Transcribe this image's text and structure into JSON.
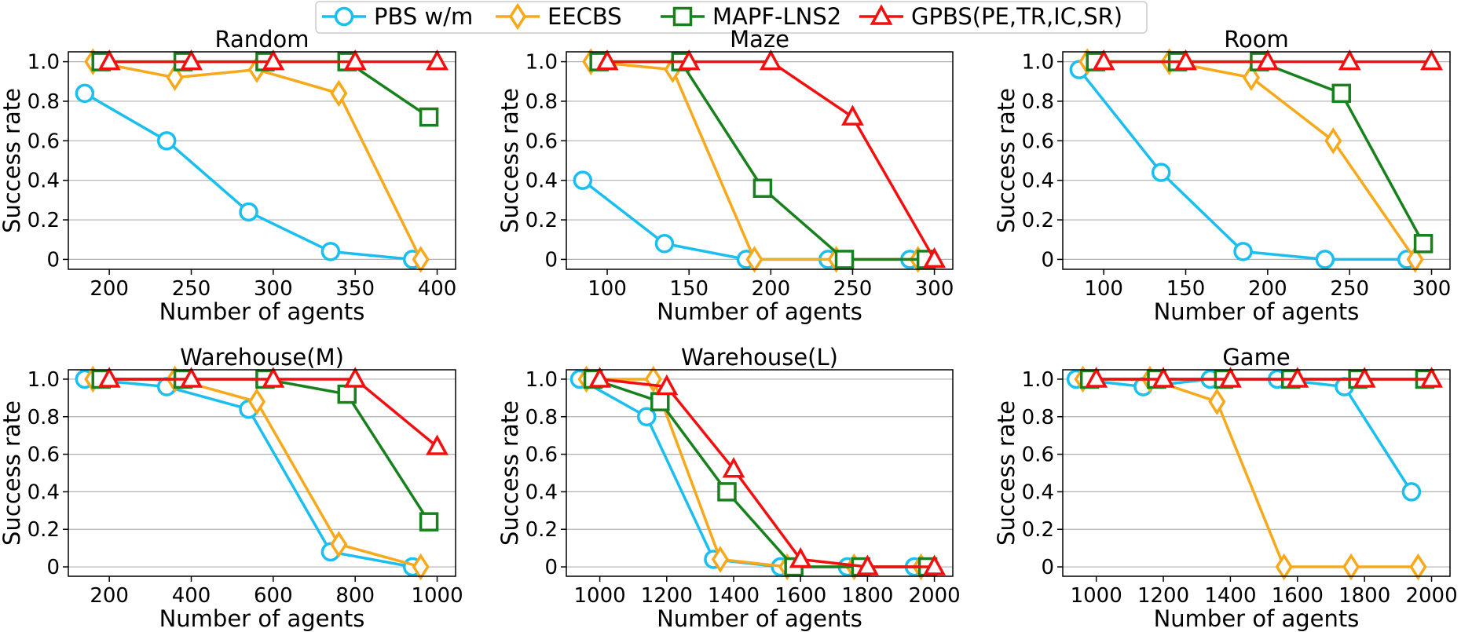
{
  "legend": {
    "placement": "top-center",
    "entries": [
      {
        "label": "PBS w/m",
        "color": "#1ABFEF",
        "marker": "circle"
      },
      {
        "label": "EECBS",
        "color": "#F7A81B",
        "marker": "diamond"
      },
      {
        "label": "MAPF-LNS2",
        "color": "#18811D",
        "marker": "square"
      },
      {
        "label": "GPBS(PE,TR,IC,SR)",
        "color": "#F20F0F",
        "marker": "triangle"
      }
    ]
  },
  "chart_data": [
    {
      "type": "line",
      "title": "Random",
      "xlabel": "Number of agents",
      "ylabel": "Success rate",
      "xlim": [
        175,
        400
      ],
      "ylim": [
        -0.05,
        1.05
      ],
      "xticks": [
        200,
        250,
        300,
        350,
        400
      ],
      "xtick_labels": [
        "200",
        "250",
        "300",
        "350",
        "400"
      ],
      "yticks": [
        0,
        0.2,
        0.4,
        0.6,
        0.8,
        1.0
      ],
      "ytick_labels": [
        "0",
        "0.2",
        "0.4",
        "0.6",
        "0.8",
        "1.0"
      ],
      "grid": "horizontal",
      "series": [
        {
          "name": "PBS w/m",
          "x": [
            185,
            235,
            285,
            335,
            385
          ],
          "y": [
            0.84,
            0.6,
            0.24,
            0.04,
            0.0
          ]
        },
        {
          "name": "EECBS",
          "x": [
            190,
            240,
            290,
            340,
            390
          ],
          "y": [
            1.0,
            0.92,
            0.96,
            0.84,
            0.0
          ]
        },
        {
          "name": "MAPF-LNS2",
          "x": [
            195,
            245,
            295,
            345,
            395
          ],
          "y": [
            1.0,
            1.0,
            1.0,
            1.0,
            0.72
          ]
        },
        {
          "name": "GPBS(PE,TR,IC,SR)",
          "x": [
            200,
            250,
            300,
            350,
            400
          ],
          "y": [
            1.0,
            1.0,
            1.0,
            1.0,
            1.0
          ]
        }
      ]
    },
    {
      "type": "line",
      "title": "Maze",
      "xlabel": "Number of agents",
      "ylabel": "Success rate",
      "xlim": [
        75,
        300
      ],
      "ylim": [
        -0.05,
        1.05
      ],
      "xticks": [
        100,
        150,
        200,
        250,
        300
      ],
      "xtick_labels": [
        "100",
        "150",
        "200",
        "250",
        "300"
      ],
      "yticks": [
        0,
        0.2,
        0.4,
        0.6,
        0.8,
        1.0
      ],
      "ytick_labels": [
        "0",
        "0.2",
        "0.4",
        "0.6",
        "0.8",
        "1.0"
      ],
      "grid": "horizontal",
      "series": [
        {
          "name": "PBS w/m",
          "x": [
            85,
            135,
            185,
            235,
            285
          ],
          "y": [
            0.4,
            0.08,
            0.0,
            0.0,
            0.0
          ]
        },
        {
          "name": "EECBS",
          "x": [
            90,
            140,
            190,
            240,
            290
          ],
          "y": [
            1.0,
            0.96,
            0.0,
            0.0,
            0.0
          ]
        },
        {
          "name": "MAPF-LNS2",
          "x": [
            95,
            145,
            195,
            245,
            295
          ],
          "y": [
            1.0,
            1.0,
            0.36,
            0.0,
            0.0
          ]
        },
        {
          "name": "GPBS(PE,TR,IC,SR)",
          "x": [
            100,
            150,
            200,
            250,
            300
          ],
          "y": [
            1.0,
            1.0,
            1.0,
            0.72,
            0.0
          ]
        }
      ]
    },
    {
      "type": "line",
      "title": "Room",
      "xlabel": "Number of agents",
      "ylabel": "Success rate",
      "xlim": [
        75,
        300
      ],
      "ylim": [
        -0.05,
        1.05
      ],
      "xticks": [
        100,
        150,
        200,
        250,
        300
      ],
      "xtick_labels": [
        "100",
        "150",
        "200",
        "250",
        "300"
      ],
      "yticks": [
        0,
        0.2,
        0.4,
        0.6,
        0.8,
        1.0
      ],
      "ytick_labels": [
        "0",
        "0.2",
        "0.4",
        "0.6",
        "0.8",
        "1.0"
      ],
      "grid": "horizontal",
      "series": [
        {
          "name": "PBS w/m",
          "x": [
            85,
            135,
            185,
            235,
            285
          ],
          "y": [
            0.96,
            0.44,
            0.04,
            0.0,
            0.0
          ]
        },
        {
          "name": "EECBS",
          "x": [
            90,
            140,
            190,
            240,
            290
          ],
          "y": [
            1.0,
            1.0,
            0.92,
            0.6,
            0.0
          ]
        },
        {
          "name": "MAPF-LNS2",
          "x": [
            95,
            145,
            195,
            245,
            295
          ],
          "y": [
            1.0,
            1.0,
            1.0,
            0.84,
            0.08
          ]
        },
        {
          "name": "GPBS(PE,TR,IC,SR)",
          "x": [
            100,
            150,
            200,
            250,
            300
          ],
          "y": [
            1.0,
            1.0,
            1.0,
            1.0,
            1.0
          ]
        }
      ]
    },
    {
      "type": "line",
      "title": "Warehouse(M)",
      "xlabel": "Number of agents",
      "ylabel": "Success rate",
      "xlim": [
        100,
        1000
      ],
      "ylim": [
        -0.05,
        1.05
      ],
      "xticks": [
        200,
        400,
        600,
        800,
        1000
      ],
      "xtick_labels": [
        "200",
        "400",
        "600",
        "800",
        "1000"
      ],
      "yticks": [
        0,
        0.2,
        0.4,
        0.6,
        0.8,
        1.0
      ],
      "ytick_labels": [
        "0",
        "0.2",
        "0.4",
        "0.6",
        "0.8",
        "1.0"
      ],
      "grid": "horizontal",
      "series": [
        {
          "name": "PBS w/m",
          "x": [
            140,
            340,
            540,
            740,
            940
          ],
          "y": [
            1.0,
            0.96,
            0.84,
            0.08,
            0.0
          ]
        },
        {
          "name": "EECBS",
          "x": [
            160,
            360,
            560,
            760,
            960
          ],
          "y": [
            1.0,
            1.0,
            0.88,
            0.12,
            0.0
          ]
        },
        {
          "name": "MAPF-LNS2",
          "x": [
            180,
            380,
            580,
            780,
            980
          ],
          "y": [
            1.0,
            1.0,
            1.0,
            0.92,
            0.24
          ]
        },
        {
          "name": "GPBS(PE,TR,IC,SR)",
          "x": [
            200,
            400,
            600,
            800,
            1000
          ],
          "y": [
            1.0,
            1.0,
            1.0,
            1.0,
            0.64
          ]
        }
      ]
    },
    {
      "type": "line",
      "title": "Warehouse(L)",
      "xlabel": "Number of agents",
      "ylabel": "Success rate",
      "xlim": [
        900,
        2000
      ],
      "ylim": [
        -0.05,
        1.05
      ],
      "xticks": [
        1000,
        1200,
        1400,
        1600,
        1800,
        2000
      ],
      "xtick_labels": [
        "1000",
        "1200",
        "1400",
        "1600",
        "1800",
        "2000"
      ],
      "yticks": [
        0,
        0.2,
        0.4,
        0.6,
        0.8,
        1.0
      ],
      "ytick_labels": [
        "0",
        "0.2",
        "0.4",
        "0.6",
        "0.8",
        "1.0"
      ],
      "grid": "horizontal",
      "series": [
        {
          "name": "PBS w/m",
          "x": [
            940,
            1140,
            1340,
            1540,
            1740,
            1940
          ],
          "y": [
            1.0,
            0.8,
            0.04,
            0.0,
            0.0,
            0.0
          ]
        },
        {
          "name": "EECBS",
          "x": [
            960,
            1160,
            1360,
            1560,
            1760,
            1960
          ],
          "y": [
            1.0,
            1.0,
            0.04,
            0.0,
            0.0,
            0.0
          ]
        },
        {
          "name": "MAPF-LNS2",
          "x": [
            980,
            1180,
            1380,
            1580,
            1780,
            1980
          ],
          "y": [
            1.0,
            0.88,
            0.4,
            0.0,
            0.0,
            0.0
          ]
        },
        {
          "name": "GPBS(PE,TR,IC,SR)",
          "x": [
            1000,
            1200,
            1400,
            1600,
            1800,
            2000
          ],
          "y": [
            1.0,
            0.96,
            0.52,
            0.04,
            0.0,
            0.0
          ]
        }
      ]
    },
    {
      "type": "line",
      "title": "Game",
      "xlabel": "Number of agents",
      "ylabel": "Success rate",
      "xlim": [
        900,
        2000
      ],
      "ylim": [
        -0.05,
        1.05
      ],
      "xticks": [
        1000,
        1200,
        1400,
        1600,
        1800,
        2000
      ],
      "xtick_labels": [
        "1000",
        "1200",
        "1400",
        "1600",
        "1800",
        "2000"
      ],
      "yticks": [
        0,
        0.2,
        0.4,
        0.6,
        0.8,
        1.0
      ],
      "ytick_labels": [
        "0",
        "0.2",
        "0.4",
        "0.6",
        "0.8",
        "1.0"
      ],
      "grid": "horizontal",
      "series": [
        {
          "name": "PBS w/m",
          "x": [
            940,
            1140,
            1340,
            1540,
            1740,
            1940
          ],
          "y": [
            1.0,
            0.96,
            1.0,
            1.0,
            0.96,
            0.4
          ]
        },
        {
          "name": "EECBS",
          "x": [
            960,
            1160,
            1360,
            1560,
            1760,
            1960
          ],
          "y": [
            1.0,
            1.0,
            0.88,
            0.0,
            0.0,
            0.0
          ]
        },
        {
          "name": "MAPF-LNS2",
          "x": [
            980,
            1180,
            1380,
            1580,
            1780,
            1980
          ],
          "y": [
            1.0,
            1.0,
            1.0,
            1.0,
            1.0,
            1.0
          ]
        },
        {
          "name": "GPBS(PE,TR,IC,SR)",
          "x": [
            1000,
            1200,
            1400,
            1600,
            1800,
            2000
          ],
          "y": [
            1.0,
            1.0,
            1.0,
            1.0,
            1.0,
            1.0
          ]
        }
      ]
    }
  ]
}
